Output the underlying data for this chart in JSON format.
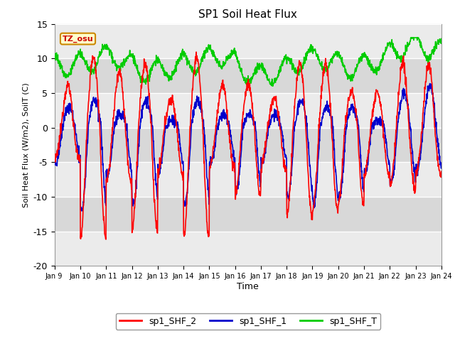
{
  "title": "SP1 Soil Heat Flux",
  "xlabel": "Time",
  "ylabel": "Soil Heat Flux (W/m2), SoilT (C)",
  "ylim": [
    -20,
    15
  ],
  "xlim": [
    0,
    15
  ],
  "xtick_labels": [
    "Jan 9 ",
    "Jan 10",
    "Jan 11",
    "Jan 12",
    "Jan 13",
    "Jan 14",
    "Jan 15",
    "Jan 16",
    "Jan 17",
    "Jan 18",
    "Jan 19",
    "Jan 20",
    "Jan 21",
    "Jan 22",
    "Jan 23",
    "Jan 24"
  ],
  "ytick_values": [
    -20,
    -15,
    -10,
    -5,
    0,
    5,
    10,
    15
  ],
  "color_shf2": "#ff0000",
  "color_shf1": "#0000cc",
  "color_shft": "#00cc00",
  "label_shf2": "sp1_SHF_2",
  "label_shf1": "sp1_SHF_1",
  "label_shft": "sp1_SHF_T",
  "tz_label": "TZ_osu",
  "tz_text_color": "#cc0000",
  "tz_bg_color": "#ffffcc",
  "tz_border_color": "#cc8800",
  "plot_bg_color": "#d8d8d8",
  "fig_bg_color": "#ffffff",
  "grid_color": "#f0f0f0",
  "linewidth": 1.2,
  "n_points": 1440
}
